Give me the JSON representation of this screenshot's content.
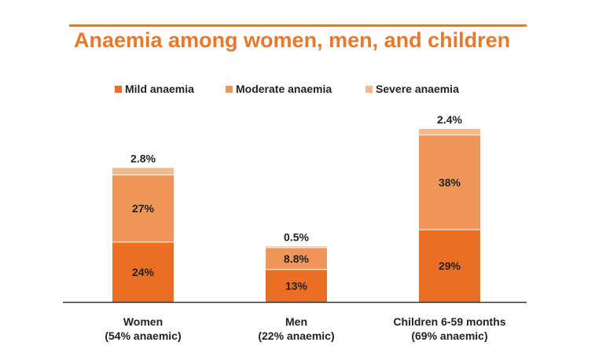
{
  "chart_data": {
    "type": "bar",
    "stacked": true,
    "title": "Anaemia among women, men, and children",
    "xlabel": "",
    "ylabel": "",
    "ylim": [
      0,
      70
    ],
    "legend_position": "top",
    "categories": [
      {
        "line1": "Women",
        "line2": "(54% anaemic)"
      },
      {
        "line1": "Men",
        "line2": "(22% anaemic)"
      },
      {
        "line1": "Children 6-59 months",
        "line2": "(69% anaemic)"
      }
    ],
    "series": [
      {
        "name": "Mild anaemia",
        "color": "#ea6f24",
        "values": [
          24,
          13,
          29
        ],
        "labels": [
          "24%",
          "13%",
          "29%"
        ]
      },
      {
        "name": "Moderate anaemia",
        "color": "#f0965a",
        "values": [
          27,
          8.8,
          38
        ],
        "labels": [
          "27%",
          "8.8%",
          "38%"
        ]
      },
      {
        "name": "Severe anaemia",
        "color": "#f5b88e",
        "values": [
          2.8,
          0.5,
          2.4
        ],
        "labels": [
          "2.8%",
          "0.5%",
          "2.4%"
        ]
      }
    ]
  }
}
